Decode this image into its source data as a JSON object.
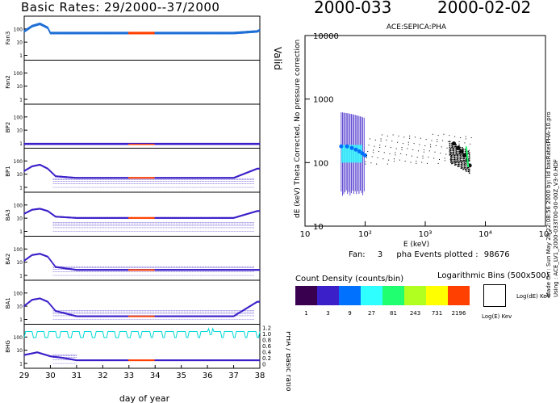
{
  "header": {
    "left_title": "Basic Rates: 29/2000--37/2000",
    "doy_label": "2000-033",
    "date_label": "2000-02-02"
  },
  "rates_panel": {
    "x_axis": {
      "label": "day of year",
      "ticks": [
        "29",
        "30",
        "31",
        "32",
        "33",
        "34",
        "35",
        "36",
        "37",
        "38"
      ],
      "range": [
        29,
        38
      ]
    },
    "valid_label": "Valid",
    "ratio_axis": {
      "label": "PHA / Basic ratio",
      "ticks": [
        "0",
        "0.2",
        "0.4",
        "0.6",
        "0.8",
        "1.0",
        "1.2"
      ]
    },
    "rows": [
      {
        "name": "Fan3",
        "y_ticks": [
          "1",
          "10",
          "100"
        ],
        "color": "#1f6fd6"
      },
      {
        "name": "Fan2",
        "y_ticks": [
          "1",
          "10",
          "100"
        ],
        "color": "#1f6fd6"
      },
      {
        "name": "BP2",
        "y_ticks": [
          "1",
          "10",
          "100"
        ],
        "color": "#3b1fc8"
      },
      {
        "name": "BP1",
        "y_ticks": [
          "1",
          "10",
          "100"
        ],
        "color": "#3b1fc8"
      },
      {
        "name": "BA3",
        "y_ticks": [
          "1",
          "10",
          "100"
        ],
        "color": "#3b1fc8"
      },
      {
        "name": "BA2",
        "y_ticks": [
          "1",
          "10",
          "100"
        ],
        "color": "#3b1fc8"
      },
      {
        "name": "BA1",
        "y_ticks": [
          "1",
          "10",
          "100"
        ],
        "color": "#3b1fc8"
      },
      {
        "name": "BHG",
        "y_ticks": [
          "1",
          "10",
          "100"
        ],
        "color": "#3b1fc8"
      }
    ],
    "highlight_color": "#ff4000",
    "highlight_range": [
      33,
      34
    ]
  },
  "pha_plot": {
    "title": "ACE:SEPICA:PHA",
    "y_label": "dE (keV) Theta Corrected, No pressure correction",
    "x_label": "E (keV)",
    "x_ticks": [
      "10",
      "10²",
      "10³",
      "10⁴",
      "10⁵"
    ],
    "y_ticks": [
      "10",
      "100",
      "1000",
      "10000"
    ],
    "fan_label": "Fan:",
    "fan_value": "3",
    "events_label": "pha Events plotted :",
    "events_value": "98676",
    "side_note_1": "Made On : Sun May 28 22:08:56 2000   by: lid basRatesPHA-10.pro",
    "side_note_2": "Using : ACE_LV1_2000-033T00-00-00Z_V3-0.HDF"
  },
  "legend": {
    "title": "Count Density (counts/bin)",
    "bins_title": "Logarithmic Bins (500x500)",
    "labels": [
      "1",
      "3",
      "9",
      "27",
      "81",
      "243",
      "731",
      "2196"
    ],
    "colors": [
      "#3a0050",
      "#3b1fc8",
      "#0070ff",
      "#30ffff",
      "#20ff70",
      "#b0ff20",
      "#ffff00",
      "#ff4000"
    ],
    "box_label_y": "Log(dE) KeV",
    "box_label_x": "Log(E) Kev"
  },
  "chart_data": [
    {
      "type": "scatter",
      "title": "Basic Rates: 29/2000--37/2000",
      "xlabel": "day of year",
      "ylabel": "",
      "xlim": [
        29,
        38
      ],
      "ylog": true,
      "series": [
        {
          "name": "Fan3",
          "x": [
            29.0,
            29.3,
            29.6,
            29.9,
            30.0,
            31,
            32,
            33,
            34,
            35,
            36,
            37,
            37.9,
            38
          ],
          "y": [
            80,
            200,
            300,
            150,
            60,
            60,
            60,
            60,
            60,
            60,
            60,
            60,
            80,
            100
          ]
        },
        {
          "name": "Fan2",
          "x": [],
          "y": []
        },
        {
          "name": "BP2",
          "x": [
            29.5,
            30,
            31,
            32,
            33,
            34,
            35,
            36,
            37
          ],
          "y": [
            1,
            1,
            1,
            1,
            1,
            1,
            1,
            1,
            1
          ]
        },
        {
          "name": "BP1",
          "x": [
            29.0,
            29.3,
            29.6,
            29.9,
            30.2,
            31,
            32,
            33,
            34,
            35,
            36,
            37,
            37.9
          ],
          "y": [
            20,
            45,
            60,
            30,
            8,
            6,
            6,
            6,
            6,
            6,
            6,
            6,
            30
          ]
        },
        {
          "name": "BA3",
          "x": [
            29.0,
            29.3,
            29.6,
            29.9,
            30.2,
            31,
            32,
            33,
            34,
            35,
            36,
            37,
            37.9
          ],
          "y": [
            25,
            50,
            60,
            40,
            15,
            12,
            12,
            12,
            12,
            12,
            12,
            12,
            40
          ]
        },
        {
          "name": "BA2",
          "x": [
            29.0,
            29.3,
            29.6,
            29.9,
            30.2,
            31,
            32,
            33,
            34,
            35,
            36,
            37
          ],
          "y": [
            15,
            40,
            50,
            30,
            5,
            3,
            3,
            3,
            3,
            3,
            3,
            3
          ]
        },
        {
          "name": "BA1",
          "x": [
            29.0,
            29.3,
            29.6,
            29.9,
            30.2,
            31,
            32,
            33,
            34,
            35,
            36,
            37,
            37.9
          ],
          "y": [
            12,
            35,
            45,
            25,
            5,
            2,
            2,
            2,
            2,
            2,
            2,
            2,
            25
          ]
        },
        {
          "name": "BHG",
          "x": [
            29.0,
            29.5,
            30,
            30.5,
            31,
            32,
            33,
            34,
            35,
            36,
            37
          ],
          "y": [
            5,
            8,
            4,
            3,
            2,
            2,
            2,
            2,
            2,
            2,
            2
          ]
        }
      ]
    },
    {
      "type": "scatter",
      "title": "ACE:SEPICA:PHA",
      "xlabel": "E (keV)",
      "ylabel": "dE (keV) Theta Corrected, No pressure correction",
      "xlim": [
        10,
        100000
      ],
      "ylim": [
        10,
        10000
      ],
      "xlog": true,
      "ylog": true,
      "series": [
        {
          "name": "",
          "x": [
            40,
            50,
            60,
            70,
            80,
            90,
            100,
            3000,
            3500,
            4000,
            4500,
            5000,
            5500
          ],
          "y": [
            180,
            180,
            170,
            160,
            150,
            140,
            130,
            200,
            170,
            150,
            130,
            110,
            90
          ]
        }
      ]
    }
  ]
}
